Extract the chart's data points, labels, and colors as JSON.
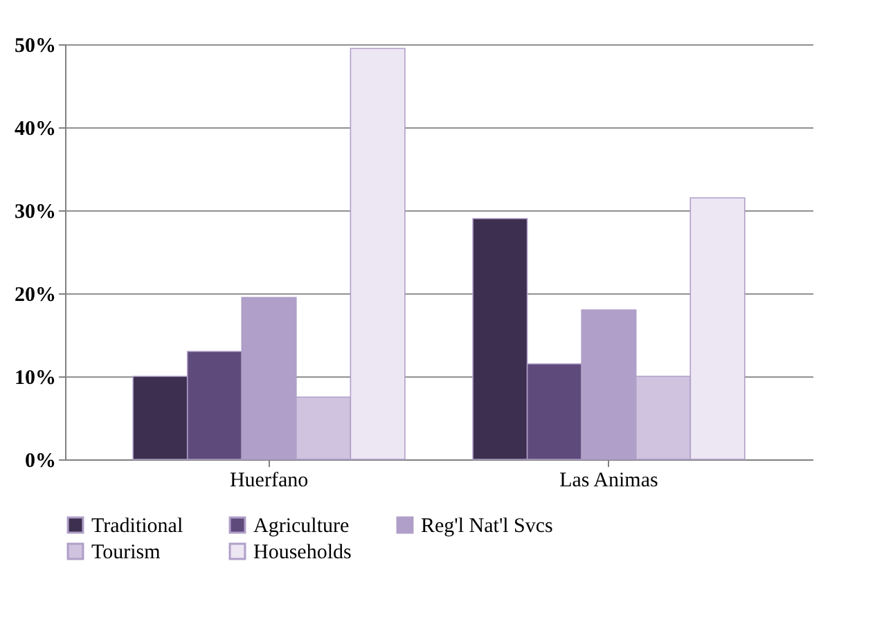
{
  "chart_data": {
    "type": "bar",
    "categories": [
      "Huerfano",
      "Las Animas"
    ],
    "series": [
      {
        "name": "Traditional",
        "color": "#3d2f4f",
        "values": [
          10,
          29
        ]
      },
      {
        "name": "Agriculture",
        "color": "#5f4a7c",
        "values": [
          13,
          11.5
        ]
      },
      {
        "name": "Reg'l Nat'l Svcs",
        "color": "#b09fc8",
        "values": [
          19.5,
          18
        ]
      },
      {
        "name": "Tourism",
        "color": "#cfc3df",
        "values": [
          7.5,
          10
        ]
      },
      {
        "name": "Households",
        "color": "#ede6f3",
        "values": [
          49.5,
          31.5
        ]
      }
    ],
    "ylim": [
      0,
      50
    ],
    "yticks": [
      {
        "value": 0,
        "label": "0%"
      },
      {
        "value": 10,
        "label": "10%"
      },
      {
        "value": 20,
        "label": "20%"
      },
      {
        "value": 30,
        "label": "30%"
      },
      {
        "value": 40,
        "label": "40%"
      },
      {
        "value": 50,
        "label": "50%"
      }
    ],
    "grid": "y",
    "legend": "bottom"
  }
}
